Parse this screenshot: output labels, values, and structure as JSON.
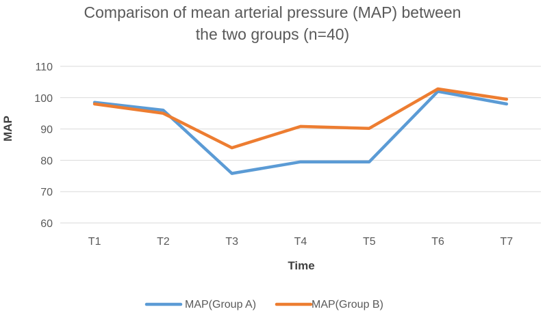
{
  "chart_data": {
    "type": "line",
    "title_lines": [
      "Comparison of mean arterial pressure (MAP) between",
      "the two groups (n=40)"
    ],
    "xlabel": "Time",
    "ylabel": "MAP",
    "categories": [
      "T1",
      "T2",
      "T3",
      "T4",
      "T5",
      "T6",
      "T7"
    ],
    "ylim": [
      60,
      110
    ],
    "yticks": [
      60,
      70,
      80,
      90,
      100,
      110
    ],
    "grid": true,
    "legend_position": "bottom",
    "series": [
      {
        "name": "MAP(Group A)",
        "color": "#5b9bd5",
        "values": [
          98.5,
          96,
          75.8,
          79.5,
          79.5,
          102,
          98
        ]
      },
      {
        "name": "MAP(Group B)",
        "color": "#ed7d31",
        "values": [
          98,
          95,
          84,
          90.8,
          90.2,
          102.8,
          99.5
        ]
      }
    ]
  }
}
